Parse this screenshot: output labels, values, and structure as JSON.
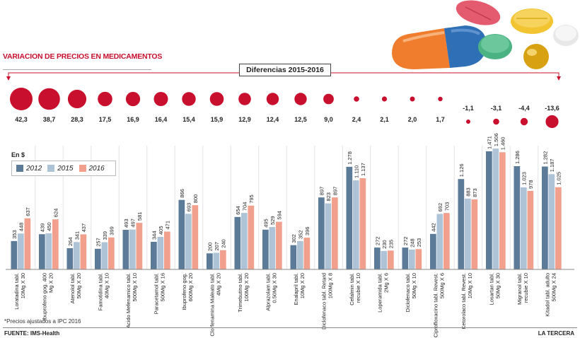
{
  "header": {
    "title": "VARIACION DE PRECIOS EN MEDICAMENTOS",
    "diff_label": "Diferencias 2015-2016"
  },
  "unit_label": "En $",
  "footnote": "*Precios ajustados a IPC 2016",
  "source": "FUENTE: IMS-Health",
  "brand": "LA TERCERA",
  "colors": {
    "accent": "#c8102e",
    "y2012": "#5b7b98",
    "y2015": "#aec4d6",
    "y2016": "#f2a08e"
  },
  "icons": [
    "pills-illustration"
  ],
  "chart_data": {
    "type": "bar",
    "title": "VARIACION DE PRECIOS EN MEDICAMENTOS",
    "ylabel": "En $",
    "ylim": [
      0,
      1600
    ],
    "categories": [
      "Loratadina tabl. 10Mg X 30",
      "Ibuprofeno gog. 400 Mg X 20",
      "Atenolol tabl. 50Mg X 20",
      "Famotidina tabl. 40Mg X 10",
      "Acido Mefenamico tabl. 500Mg X 10",
      "Paracetamol tabl. 500Mg X 16",
      "Ibuprofeno gog. 600Mg X 20",
      "Clorfenamina Maleato tabl. 4Mg X 20",
      "Trimebutino tabl. 100Mg X 20",
      "Alprazolam tabl. 0.50Mg X 30",
      "Enalapril tabl. 10Mg X 20",
      "Diclofenaco tabl. Retard 100Mg X 8",
      "Cefalmin tabl. recubie X 10",
      "Loperamida tabl. 2Mg X 6",
      "Diclofenaco tabl. 50Mg X 10",
      "Ciprofloxacino tabl. Revest. 500Mg X 6",
      "Ketorolaco tabl. Revest. 10Mg X 10",
      "Losartan tabl. 50Mg X 30",
      "Migranol tabl. recubie X 10",
      "Kitadol tabl. adulto 500Mg X 24"
    ],
    "differences": [
      42.3,
      38.7,
      28.3,
      17.5,
      16.9,
      16.4,
      15.4,
      15.9,
      12.9,
      12.4,
      12.5,
      9.0,
      2.4,
      2.1,
      2.0,
      1.7,
      -1.1,
      -3.1,
      -4.4,
      -13.6
    ],
    "difference_labels": [
      "42,3",
      "38,7",
      "28,3",
      "17,5",
      "16,9",
      "16,4",
      "15,4",
      "15,9",
      "12,9",
      "12,4",
      "12,5",
      "9,0",
      "2,4",
      "2,1",
      "2,0",
      "1,7",
      "-1,1",
      "-3,1",
      "-4,4",
      "-13,6"
    ],
    "series": [
      {
        "name": "2012",
        "values": [
          353,
          439,
          264,
          257,
          493,
          344,
          866,
          200,
          654,
          495,
          302,
          897,
          1278,
          272,
          272,
          442,
          1126,
          1471,
          1286,
          1282
        ],
        "labels": [
          "353",
          "439",
          "264",
          "257",
          "493",
          "344",
          "866",
          "200",
          "654",
          "495",
          "302",
          "897",
          "1.278",
          "272",
          "272",
          "442",
          "1.126",
          "1.471",
          "1.286",
          "1.282"
        ]
      },
      {
        "name": "2015",
        "values": [
          448,
          450,
          341,
          339,
          497,
          405,
          693,
          207,
          704,
          529,
          352,
          823,
          1110,
          230,
          248,
          692,
          883,
          1506,
          1023,
          1187
        ],
        "labels": [
          "448",
          "450",
          "341",
          "339",
          "497",
          "405",
          "693",
          "207",
          "704",
          "529",
          "352",
          "823",
          "1.110",
          "230",
          "248",
          "692",
          "883",
          "1.506",
          "1.023",
          "1.187"
        ]
      },
      {
        "name": "2016",
        "values": [
          637,
          624,
          437,
          399,
          581,
          471,
          800,
          240,
          795,
          594,
          396,
          897,
          1137,
          235,
          253,
          703,
          873,
          1460,
          978,
          1025
        ],
        "labels": [
          "637",
          "624",
          "437",
          "399",
          "581",
          "471",
          "800",
          "240",
          "795",
          "594",
          "396",
          "897",
          "1.137",
          "235",
          "253",
          "703",
          "873",
          "1.460",
          "978",
          "1.025"
        ]
      }
    ],
    "legend": [
      "2012",
      "2015",
      "2016"
    ]
  }
}
